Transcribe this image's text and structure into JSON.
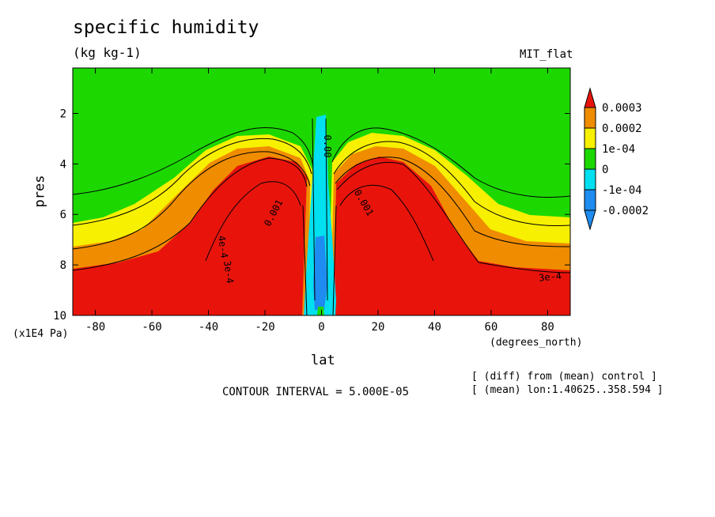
{
  "chart_data": {
    "type": "heatmap",
    "title": "specific humidity",
    "units": "(kg kg-1)",
    "run_label": "MIT_flat",
    "xlabel": "lat",
    "x_units": "(degrees_north)",
    "ylabel": "pres",
    "y_units": "(x1E4 Pa)",
    "x_range": [
      -88,
      88
    ],
    "y_range": [
      0.2,
      10
    ],
    "y_inverted": true,
    "x_ticks": [
      -80,
      -60,
      -40,
      -20,
      0,
      20,
      40,
      60,
      80
    ],
    "y_ticks": [
      2,
      4,
      6,
      8,
      10
    ],
    "colorbar": {
      "levels": [
        {
          "label": "0.0003",
          "color": "#e8140c"
        },
        {
          "label": "0.0002",
          "color": "#f08c00"
        },
        {
          "label": "1e-04",
          "color": "#f7f000"
        },
        {
          "label": "0",
          "color": "#1cd800"
        },
        {
          "label": "-1e-04",
          "color": "#00e0f0"
        },
        {
          "label": "-0.0002",
          "color": "#1e8cf0"
        }
      ],
      "extend": "both"
    },
    "contour_labels": [
      "0.00",
      "0.001",
      "0.001",
      "4e-4",
      "3e-4",
      "3e-4"
    ],
    "contour_interval": "CONTOUR INTERVAL = 5.000E-05",
    "notes": [
      "[ (diff) from (mean) control ]",
      "[ (mean) lon:1.40625..358.594 ]"
    ]
  }
}
